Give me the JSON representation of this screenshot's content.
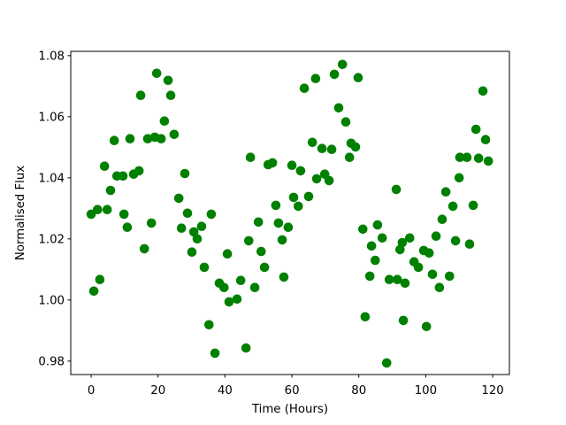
{
  "figure": {
    "background_color": "#ffffff",
    "title": ""
  },
  "chart_data": {
    "type": "scatter",
    "title": "",
    "xlabel": "Time (Hours)",
    "ylabel": "Normalised Flux",
    "xlim": [
      -6.1,
      125.0
    ],
    "ylim": [
      0.9756,
      1.0814
    ],
    "xticks": {
      "values": [
        0,
        20,
        40,
        60,
        80,
        100,
        120
      ],
      "labels": [
        "0",
        "20",
        "40",
        "60",
        "80",
        "100",
        "120"
      ]
    },
    "yticks": {
      "values": [
        0.98,
        1.0,
        1.02,
        1.04,
        1.06,
        1.08
      ],
      "labels": [
        "0.98",
        "1.00",
        "1.02",
        "1.04",
        "1.06",
        "1.08"
      ]
    },
    "grid": false,
    "legend": null,
    "marker": {
      "shape": "circle",
      "color": "#008000",
      "radius_px": 5.3
    },
    "axis_color": "#000000",
    "series": [
      {
        "name": "normalised-flux-vs-time",
        "points": [
          [
            19.6,
            1.0742
          ],
          [
            23.0,
            1.0719
          ],
          [
            14.8,
            1.067
          ],
          [
            23.8,
            1.067
          ],
          [
            21.9,
            1.0586
          ],
          [
            24.8,
            1.0542
          ],
          [
            6.9,
            1.0522
          ],
          [
            11.6,
            1.0528
          ],
          [
            16.9,
            1.0528
          ],
          [
            19.0,
            1.0533
          ],
          [
            20.9,
            1.0528
          ],
          [
            4.0,
            1.0438
          ],
          [
            7.7,
            1.0406
          ],
          [
            9.5,
            1.0406
          ],
          [
            12.7,
            1.0412
          ],
          [
            14.3,
            1.0423
          ],
          [
            28.0,
            1.0414
          ],
          [
            75.1,
            1.0771
          ],
          [
            72.7,
            1.0739
          ],
          [
            67.1,
            1.0725
          ],
          [
            79.8,
            1.0728
          ],
          [
            63.7,
            1.0693
          ],
          [
            74.0,
            1.0629
          ],
          [
            76.1,
            1.0583
          ],
          [
            66.1,
            1.0516
          ],
          [
            69.0,
            1.0496
          ],
          [
            71.9,
            1.0493
          ],
          [
            77.7,
            1.0513
          ],
          [
            79.0,
            1.0501
          ],
          [
            77.2,
            1.0467
          ],
          [
            47.6,
            1.0467
          ],
          [
            52.9,
            1.0443
          ],
          [
            54.2,
            1.0449
          ],
          [
            60.0,
            1.0441
          ],
          [
            62.6,
            1.0423
          ],
          [
            69.8,
            1.0412
          ],
          [
            67.4,
            1.0397
          ],
          [
            71.1,
            1.0391
          ],
          [
            117.1,
            1.0684
          ],
          [
            115.0,
            1.0559
          ],
          [
            117.9,
            1.0525
          ],
          [
            110.2,
            1.0467
          ],
          [
            112.3,
            1.0467
          ],
          [
            115.8,
            1.0464
          ],
          [
            118.7,
            1.0455
          ],
          [
            110.0,
            1.04
          ],
          [
            5.8,
            1.0359
          ],
          [
            0.0,
            1.0281
          ],
          [
            1.9,
            1.0296
          ],
          [
            4.8,
            1.0296
          ],
          [
            9.8,
            1.0281
          ],
          [
            10.8,
            1.0238
          ],
          [
            18.0,
            1.0252
          ],
          [
            26.2,
            1.0333
          ],
          [
            28.8,
            1.0284
          ],
          [
            27.0,
            1.0235
          ],
          [
            30.7,
            1.0223
          ],
          [
            33.0,
            1.0241
          ],
          [
            31.7,
            1.02
          ],
          [
            35.9,
            1.0281
          ],
          [
            30.1,
            1.0157
          ],
          [
            15.9,
            1.0168
          ],
          [
            33.8,
            1.0107
          ],
          [
            2.6,
            1.0067
          ],
          [
            0.8,
            1.0029
          ],
          [
            38.3,
            1.0055
          ],
          [
            39.7,
            1.0041
          ],
          [
            40.7,
            1.0151
          ],
          [
            41.2,
            0.9994
          ],
          [
            43.6,
            1.0003
          ],
          [
            91.2,
            1.0362
          ],
          [
            60.5,
            1.0336
          ],
          [
            61.9,
            1.0307
          ],
          [
            65.0,
            1.0339
          ],
          [
            55.2,
            1.031
          ],
          [
            50.0,
            1.0255
          ],
          [
            56.0,
            1.0252
          ],
          [
            58.9,
            1.0238
          ],
          [
            81.2,
            1.0232
          ],
          [
            85.6,
            1.0246
          ],
          [
            47.1,
            1.0194
          ],
          [
            57.1,
            1.0197
          ],
          [
            87.0,
            1.0203
          ],
          [
            83.8,
            1.0177
          ],
          [
            93.0,
            1.0188
          ],
          [
            50.8,
            1.0159
          ],
          [
            84.9,
            1.013
          ],
          [
            51.8,
            1.0107
          ],
          [
            57.6,
            1.0075
          ],
          [
            44.7,
            1.0064
          ],
          [
            48.9,
            1.0041
          ],
          [
            83.3,
            1.0078
          ],
          [
            89.1,
            1.0067
          ],
          [
            91.5,
            1.0067
          ],
          [
            106.0,
            1.0354
          ],
          [
            108.1,
            1.0307
          ],
          [
            114.2,
            1.031
          ],
          [
            104.9,
            1.0264
          ],
          [
            103.1,
            1.0209
          ],
          [
            95.2,
            1.0203
          ],
          [
            108.9,
            1.0194
          ],
          [
            113.1,
            1.0183
          ],
          [
            92.3,
            1.0165
          ],
          [
            99.4,
            1.0162
          ],
          [
            101.0,
            1.0154
          ],
          [
            96.5,
            1.0125
          ],
          [
            97.8,
            1.0107
          ],
          [
            102.0,
            1.0084
          ],
          [
            107.1,
            1.0078
          ],
          [
            93.8,
            1.0055
          ],
          [
            104.1,
            1.0041
          ],
          [
            35.2,
            0.9919
          ],
          [
            37.0,
            0.9826
          ],
          [
            46.3,
            0.9843
          ],
          [
            81.9,
            0.9945
          ],
          [
            93.3,
            0.9933
          ],
          [
            88.3,
            0.9794
          ],
          [
            100.2,
            0.9913
          ]
        ]
      }
    ]
  }
}
